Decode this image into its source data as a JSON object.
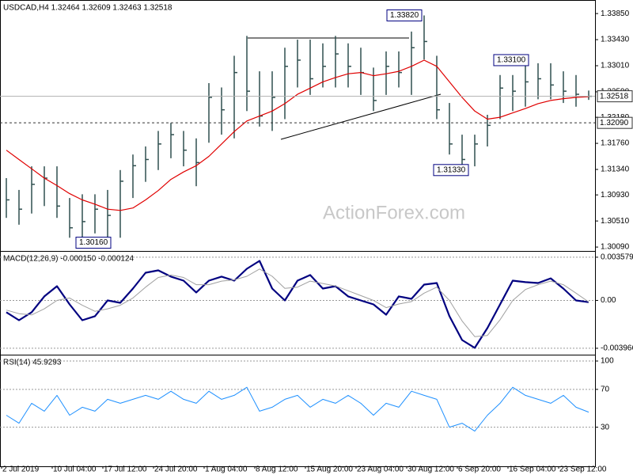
{
  "chart_data": [
    {
      "type": "ohlc",
      "title": "USDCAD,H4  1.32464 1.32609 1.32463 1.32518",
      "watermark": "ActionForex.com",
      "color": "#2f4f4f",
      "high": [
        1.312,
        1.3101,
        1.3139,
        1.3139,
        1.3139,
        1.3088,
        1.3094,
        1.3094,
        1.3101,
        1.3133,
        1.3158,
        1.3171,
        1.3196,
        1.3209,
        1.3196,
        1.3184,
        1.3273,
        1.3266,
        1.3317,
        1.3349,
        1.3292,
        1.3292,
        1.333,
        1.3343,
        1.3343,
        1.3337,
        1.3349,
        1.3337,
        1.333,
        1.3298,
        1.3324,
        1.3324,
        1.3356,
        1.3382,
        1.3317,
        1.3241,
        1.319,
        1.319,
        1.3222,
        1.3286,
        1.3286,
        1.331,
        1.3305,
        1.3305,
        1.3292,
        1.3286,
        1.3261
      ],
      "low": [
        1.3056,
        1.3045,
        1.3063,
        1.3075,
        1.3056,
        1.3024,
        1.3016,
        1.3031,
        1.3024,
        1.3024,
        1.3088,
        1.3114,
        1.3133,
        1.3152,
        1.3139,
        1.3107,
        1.3177,
        1.319,
        1.3184,
        1.3228,
        1.3203,
        1.3196,
        1.3215,
        1.3266,
        1.3254,
        1.3266,
        1.3266,
        1.3266,
        1.3254,
        1.3228,
        1.3254,
        1.3266,
        1.3254,
        1.3311,
        1.3215,
        1.3158,
        1.3133,
        1.3139,
        1.3171,
        1.3215,
        1.3228,
        1.3235,
        1.3247,
        1.3247,
        1.3241,
        1.3235,
        1.3246
      ],
      "close": [
        1.3085,
        1.307,
        1.311,
        1.312,
        1.3075,
        1.304,
        1.305,
        1.307,
        1.306,
        1.3115,
        1.314,
        1.315,
        1.3175,
        1.319,
        1.3165,
        1.3145,
        1.325,
        1.323,
        1.329,
        1.326,
        1.322,
        1.325,
        1.33,
        1.331,
        1.328,
        1.33,
        1.332,
        1.33,
        1.329,
        1.3245,
        1.33,
        1.329,
        1.333,
        1.334,
        1.323,
        1.3175,
        1.315,
        1.3175,
        1.3205,
        1.3265,
        1.326,
        1.3275,
        1.328,
        1.327,
        1.326,
        1.3255,
        1.32518
      ],
      "ma": {
        "color": "#e00000",
        "values": [
          1.3165,
          1.315,
          1.3135,
          1.312,
          1.3108,
          1.3095,
          1.3085,
          1.3078,
          1.307,
          1.3068,
          1.3072,
          1.3085,
          1.31,
          1.3118,
          1.313,
          1.314,
          1.3155,
          1.3175,
          1.3195,
          1.3212,
          1.322,
          1.3228,
          1.324,
          1.3255,
          1.3265,
          1.3275,
          1.3282,
          1.3288,
          1.329,
          1.3285,
          1.3288,
          1.3292,
          1.33,
          1.331,
          1.33,
          1.3275,
          1.325,
          1.3228,
          1.3215,
          1.3218,
          1.3225,
          1.3232,
          1.324,
          1.3245,
          1.3248,
          1.325,
          1.3251
        ]
      },
      "ylim": [
        1.3004,
        1.3403
      ],
      "yticks": [
        {
          "value": 1.3385,
          "label": "1.33850"
        },
        {
          "value": 1.3343,
          "label": "1.33430"
        },
        {
          "value": 1.3301,
          "label": "1.33010"
        },
        {
          "value": 1.3259,
          "label": "1.32590"
        },
        {
          "value": 1.3218,
          "label": "1.32180"
        },
        {
          "value": 1.3176,
          "label": "1.31760"
        },
        {
          "value": 1.3134,
          "label": "1.31340"
        },
        {
          "value": 1.3093,
          "label": "1.30930"
        },
        {
          "value": 1.3051,
          "label": "1.30510"
        },
        {
          "value": 1.3009,
          "label": "1.30090"
        }
      ],
      "last_price": 1.32518,
      "level": {
        "value": 1.3209,
        "label": "1.32090"
      },
      "annotations": [
        {
          "value": 1.3382,
          "label": "1.33820"
        },
        {
          "value": 1.331,
          "label": "1.33100"
        },
        {
          "value": 1.3133,
          "label": "1.31330"
        },
        {
          "value": 1.3016,
          "label": "1.30160"
        }
      ]
    },
    {
      "type": "macd",
      "title": "MACD(12,26,9) -0.000150 -0.000124",
      "series": [
        {
          "color": "#000080",
          "values": [
            -0.00098,
            -0.00164,
            -0.00098,
            0.00033,
            0.00118,
            -0.00033,
            -0.00164,
            -0.00131,
            0,
            -0.0002,
            0.00098,
            0.00229,
            0.00249,
            0.00197,
            0.00164,
            0.00066,
            0.00164,
            0.00197,
            0.00164,
            0.00262,
            0.00328,
            0.00098,
            0,
            0.00164,
            0.0021,
            0.00098,
            0.00118,
            0.00033,
            0,
            -0.00033,
            -0.00118,
            0.00033,
            0.00013,
            0.00131,
            0.00144,
            -0.00131,
            -0.00328,
            -0.00393,
            -0.00229,
            -0.00033,
            0.00164,
            0.00151,
            0.00144,
            0.00183,
            0.00098,
            0,
            -0.00015
          ]
        },
        {
          "color": "#a0a0a0",
          "values": [
            -0.0008,
            -0.0011,
            -0.0012,
            -0.0007,
            0.0,
            0.0002,
            -0.0004,
            -0.0009,
            -0.0007,
            -0.0004,
            0.0002,
            0.0011,
            0.0019,
            0.0021,
            0.0019,
            0.0013,
            0.0013,
            0.0016,
            0.0017,
            0.002,
            0.0026,
            0.002,
            0.001,
            0.0011,
            0.0016,
            0.0014,
            0.0012,
            0.0008,
            0.0004,
            0.0,
            -0.0006,
            -0.0003,
            -0.0001,
            0.0006,
            0.0011,
            0.0,
            -0.0017,
            -0.003,
            -0.0029,
            -0.0016,
            0.0,
            0.0009,
            0.0013,
            0.0016,
            0.0013,
            0.0006,
            -0.000124
          ]
        }
      ],
      "ylim": [
        -0.00443,
        0.0039
      ],
      "yticks": [
        0.003579,
        {
          "value": 0,
          "label": "0.00"
        },
        -0.003966
      ]
    },
    {
      "type": "line",
      "title": "RSI(14) 45.9293",
      "color": "#1e90ff",
      "values": [
        42.7,
        34.2,
        55.3,
        46.9,
        63.7,
        42.7,
        51.1,
        46.9,
        59.5,
        55.3,
        59.5,
        63.7,
        59.5,
        68.0,
        59.5,
        55.3,
        68.0,
        59.5,
        63.7,
        72.2,
        46.9,
        51.1,
        59.5,
        63.7,
        51.1,
        59.5,
        55.3,
        63.7,
        55.3,
        42.7,
        55.3,
        51.1,
        68.0,
        63.7,
        59.5,
        30.0,
        34.2,
        25.8,
        42.7,
        55.3,
        72.2,
        63.7,
        59.5,
        55.3,
        63.7,
        51.1,
        45.9293
      ],
      "ylim": [
        -10.5,
        104.2
      ],
      "yticks": [
        30,
        70,
        100
      ],
      "categories": [
        "2 Jul 2019",
        null,
        null,
        null,
        "10 Jul 04:00",
        null,
        null,
        null,
        "17 Jul 12:00",
        null,
        null,
        null,
        "24 Jul 20:00",
        null,
        null,
        null,
        "1 Aug 04:00",
        null,
        null,
        null,
        "8 Aug 12:00",
        null,
        null,
        null,
        "15 Aug 20:00",
        null,
        null,
        null,
        "23 Aug 04:00",
        null,
        null,
        null,
        "30 Aug 12:00",
        null,
        null,
        null,
        "6 Sep 20:00",
        null,
        null,
        null,
        "16 Sep 04:00",
        null,
        null,
        null,
        "23 Sep 12:00",
        null,
        null
      ]
    }
  ]
}
